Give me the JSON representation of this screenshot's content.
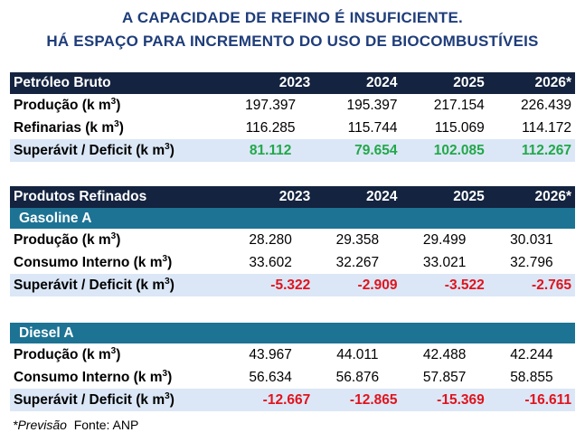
{
  "title": {
    "line1": "A CAPACIDADE DE REFINO É INSUFICIENTE.",
    "line2": "HÁ ESPAÇO PARA INCREMENTO DO USO DE BIOCOMBUSTÍVEIS"
  },
  "years": [
    "2023",
    "2024",
    "2025",
    "2026*"
  ],
  "unit": "(k m",
  "unit_exp": "3",
  "unit_close": ")",
  "crude": {
    "header": "Petróleo Bruto",
    "rows": [
      {
        "label": "Produção",
        "values": [
          "197.397",
          "195.397",
          "217.154",
          "226.439"
        ]
      },
      {
        "label": "Refinarias",
        "values": [
          "116.285",
          "115.744",
          "115.069",
          "114.172"
        ]
      },
      {
        "label": "Superávit / Deficit",
        "values": [
          "81.112",
          "79.654",
          "102.085",
          "112.267"
        ]
      }
    ]
  },
  "refined": {
    "header": "Produtos Refinados",
    "gasoline": {
      "header": "Gasoline A",
      "rows": [
        {
          "label": "Produção",
          "values": [
            "28.280",
            "29.358",
            "29.499",
            "30.031"
          ]
        },
        {
          "label": "Consumo Interno",
          "values": [
            "33.602",
            "32.267",
            "33.021",
            "32.796"
          ]
        },
        {
          "label": "Superávit / Deficit",
          "values": [
            "-5.322",
            "-2.909",
            "-3.522",
            "-2.765"
          ]
        }
      ]
    },
    "diesel": {
      "header": "Diesel A",
      "rows": [
        {
          "label": "Produção",
          "values": [
            "43.967",
            "44.011",
            "42.488",
            "42.244"
          ]
        },
        {
          "label": "Consumo Interno",
          "values": [
            "56.634",
            "56.876",
            "57.857",
            "58.855"
          ]
        },
        {
          "label": "Superávit / Deficit",
          "values": [
            "-12.667",
            "-12.865",
            "-15.369",
            "-16.611"
          ]
        }
      ]
    }
  },
  "footer": {
    "note": "*Previsão",
    "source": "Fonte: ANP"
  },
  "colors": {
    "title": "#1f3d7a",
    "header_bg": "#14233f",
    "subheader_bg": "#1d7394",
    "highlight_bg": "#dbe7f6",
    "positive": "#22a84a",
    "negative": "#e0141e"
  }
}
